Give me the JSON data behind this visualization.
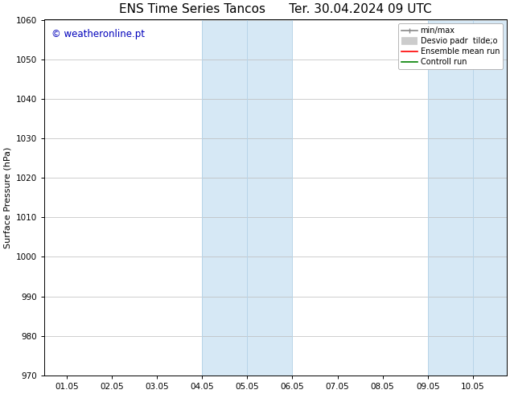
{
  "title": "ENS Time Series Tancos      Ter. 30.04.2024 09 UTC",
  "ylabel": "Surface Pressure (hPa)",
  "ylim": [
    970,
    1060
  ],
  "yticks": [
    970,
    980,
    990,
    1000,
    1010,
    1020,
    1030,
    1040,
    1050,
    1060
  ],
  "xtick_labels": [
    "01.05",
    "02.05",
    "03.05",
    "04.05",
    "05.05",
    "06.05",
    "07.05",
    "08.05",
    "09.05",
    "10.05"
  ],
  "xtick_positions": [
    1,
    2,
    3,
    4,
    5,
    6,
    7,
    8,
    9,
    10
  ],
  "xlim": [
    0.5,
    10.75
  ],
  "shaded_regions": [
    {
      "xstart": 4.0,
      "xend": 6.0,
      "color": "#d6e8f5"
    },
    {
      "xstart": 9.0,
      "xend": 10.75,
      "color": "#d6e8f5"
    }
  ],
  "vlines": [
    4.0,
    5.0,
    6.0,
    9.0,
    10.0
  ],
  "vline_color": "#b8d4e8",
  "watermark_text": "© weatheronline.pt",
  "watermark_color": "#0000bb",
  "watermark_fontsize": 8.5,
  "legend_labels": [
    "min/max",
    "Desvio padr  tilde;o",
    "Ensemble mean run",
    "Controll run"
  ],
  "legend_colors": [
    "#888888",
    "#cccccc",
    "red",
    "green"
  ],
  "bg_color": "white",
  "grid_color": "#bbbbbb",
  "title_fontsize": 11,
  "ylabel_fontsize": 8,
  "tick_fontsize": 7.5
}
